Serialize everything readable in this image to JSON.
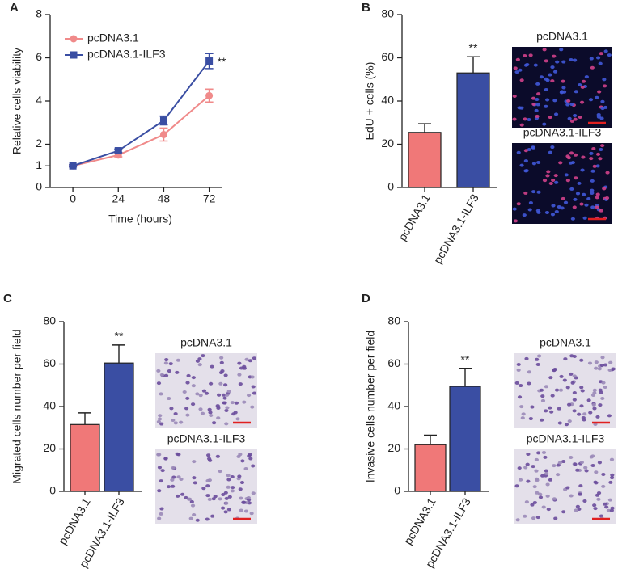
{
  "chart_data": [
    {
      "type": "line",
      "panel_label": "A",
      "xlabel": "Time (hours)",
      "ylabel": "Relative cells viability",
      "x": [
        0,
        24,
        48,
        72
      ],
      "xlim": [
        -12,
        79
      ],
      "xticks": [
        0,
        24,
        48,
        72
      ],
      "ylim": [
        0,
        8
      ],
      "yticks": [
        0,
        1,
        2,
        4,
        6,
        8
      ],
      "annotation": "**",
      "series": [
        {
          "name": "pcDNA3.1",
          "color": "#f08a8a",
          "marker": "circle",
          "values": [
            1,
            1.5,
            2.45,
            4.25
          ],
          "errors": [
            0.05,
            0.08,
            0.3,
            0.3
          ]
        },
        {
          "name": "pcDNA3.1-ILF3",
          "color": "#3a4ea3",
          "marker": "square",
          "values": [
            1,
            1.7,
            3.1,
            5.85
          ],
          "errors": [
            0.05,
            0.08,
            0.2,
            0.35
          ]
        }
      ]
    },
    {
      "type": "bar",
      "panel_label": "B",
      "ylabel": "EdU + cells (%)",
      "categories": [
        "pcDNA3.1",
        "pcDNA3.1-ILF3"
      ],
      "values": [
        25.5,
        53
      ],
      "errors": [
        4,
        7.5
      ],
      "colors": [
        "#f07878",
        "#3a4ea3"
      ],
      "ylim": [
        0,
        80
      ],
      "yticks": [
        0,
        20,
        40,
        60,
        80
      ],
      "annotation": "**",
      "image_labels": [
        "pcDNA3.1",
        "pcDNA3.1-ILF3"
      ],
      "image_style": "fluorescence"
    },
    {
      "type": "bar",
      "panel_label": "C",
      "ylabel": "Migrated cells number per field",
      "categories": [
        "pcDNA3.1",
        "pcDNA3.1-ILF3"
      ],
      "values": [
        31.5,
        60.5
      ],
      "errors": [
        5.5,
        8.5
      ],
      "colors": [
        "#f07878",
        "#3a4ea3"
      ],
      "ylim": [
        0,
        80
      ],
      "yticks": [
        0,
        20,
        40,
        60,
        80
      ],
      "annotation": "**",
      "image_labels": [
        "pcDNA3.1",
        "pcDNA3.1-ILF3"
      ],
      "image_style": "stain"
    },
    {
      "type": "bar",
      "panel_label": "D",
      "ylabel": "Invasive cells number per field",
      "categories": [
        "pcDNA3.1",
        "pcDNA3.1-ILF3"
      ],
      "values": [
        22,
        49.5
      ],
      "errors": [
        4.5,
        8.5
      ],
      "colors": [
        "#f07878",
        "#3a4ea3"
      ],
      "ylim": [
        0,
        80
      ],
      "yticks": [
        0,
        20,
        40,
        60,
        80
      ],
      "annotation": "**",
      "image_labels": [
        "pcDNA3.1",
        "pcDNA3.1-ILF3"
      ],
      "image_style": "stain"
    }
  ]
}
